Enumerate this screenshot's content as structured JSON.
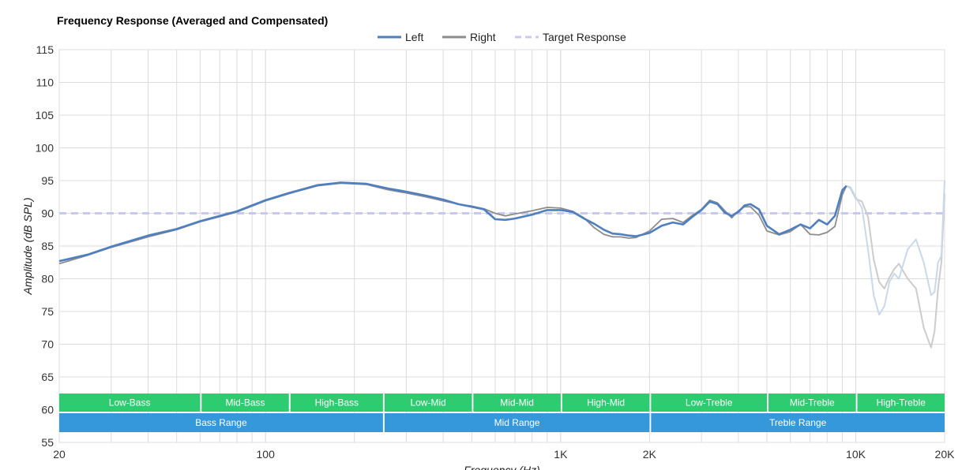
{
  "chart_data": {
    "type": "line",
    "title": "Frequency Response (Averaged and Compensated)",
    "xlabel": "Frequency (Hz)",
    "ylabel": "Amplitude (dB SPL)",
    "x_scale": "log",
    "xlim": [
      20,
      20000
    ],
    "ylim": [
      55,
      115
    ],
    "grid": true,
    "legend_position": "top-center",
    "x_tick_labels": [
      {
        "value": 20,
        "label": "20"
      },
      {
        "value": 100,
        "label": "100"
      },
      {
        "value": 1000,
        "label": "1K"
      },
      {
        "value": 2000,
        "label": "2K"
      },
      {
        "value": 10000,
        "label": "10K"
      },
      {
        "value": 20000,
        "label": "20K"
      }
    ],
    "y_ticks": [
      55,
      60,
      65,
      70,
      75,
      80,
      85,
      90,
      95,
      100,
      105,
      110,
      115
    ],
    "series": [
      {
        "name": "Left",
        "color": "#4f7fbf",
        "style": "solid",
        "faded_from": 9300,
        "faded_color": "#c9d9ea",
        "points": [
          [
            20,
            82.7
          ],
          [
            25,
            83.7
          ],
          [
            30,
            84.9
          ],
          [
            40,
            86.6
          ],
          [
            50,
            87.6
          ],
          [
            60,
            88.8
          ],
          [
            70,
            89.6
          ],
          [
            80,
            90.3
          ],
          [
            90,
            91.2
          ],
          [
            100,
            92.0
          ],
          [
            120,
            93.1
          ],
          [
            150,
            94.3
          ],
          [
            180,
            94.7
          ],
          [
            220,
            94.5
          ],
          [
            260,
            93.8
          ],
          [
            300,
            93.3
          ],
          [
            350,
            92.7
          ],
          [
            400,
            92.1
          ],
          [
            450,
            91.4
          ],
          [
            500,
            91.0
          ],
          [
            550,
            90.6
          ],
          [
            600,
            89.1
          ],
          [
            650,
            89.0
          ],
          [
            700,
            89.2
          ],
          [
            800,
            89.8
          ],
          [
            900,
            90.5
          ],
          [
            1000,
            90.5
          ],
          [
            1100,
            90.2
          ],
          [
            1200,
            89.2
          ],
          [
            1300,
            88.4
          ],
          [
            1400,
            87.5
          ],
          [
            1500,
            86.9
          ],
          [
            1600,
            86.8
          ],
          [
            1700,
            86.6
          ],
          [
            1800,
            86.5
          ],
          [
            2000,
            87.0
          ],
          [
            2200,
            88.1
          ],
          [
            2400,
            88.6
          ],
          [
            2600,
            88.3
          ],
          [
            2800,
            89.5
          ],
          [
            3000,
            90.5
          ],
          [
            3200,
            91.8
          ],
          [
            3400,
            91.4
          ],
          [
            3600,
            90.1
          ],
          [
            3800,
            89.6
          ],
          [
            4000,
            90.2
          ],
          [
            4200,
            91.2
          ],
          [
            4400,
            91.4
          ],
          [
            4700,
            90.6
          ],
          [
            5000,
            88.1
          ],
          [
            5500,
            86.8
          ],
          [
            6000,
            87.5
          ],
          [
            6500,
            88.3
          ],
          [
            7000,
            87.7
          ],
          [
            7500,
            89.0
          ],
          [
            8000,
            88.3
          ],
          [
            8500,
            89.6
          ],
          [
            9000,
            93.5
          ],
          [
            9300,
            94.2
          ],
          [
            9600,
            94.0
          ],
          [
            10000,
            92.5
          ],
          [
            10500,
            90.8
          ],
          [
            11000,
            84.5
          ],
          [
            11500,
            77.5
          ],
          [
            12000,
            74.5
          ],
          [
            12500,
            75.8
          ],
          [
            13000,
            79.5
          ],
          [
            13500,
            80.8
          ],
          [
            14000,
            80.0
          ],
          [
            15000,
            84.5
          ],
          [
            16000,
            86.0
          ],
          [
            17000,
            82.5
          ],
          [
            18000,
            77.5
          ],
          [
            18500,
            78.0
          ],
          [
            19000,
            82.5
          ],
          [
            19500,
            83.5
          ],
          [
            20000,
            95.0
          ]
        ]
      },
      {
        "name": "Right",
        "color": "#8c8c8c",
        "style": "solid",
        "faded_from": 9300,
        "faded_color": "#cccccc",
        "points": [
          [
            20,
            82.3
          ],
          [
            25,
            83.6
          ],
          [
            30,
            84.8
          ],
          [
            40,
            86.4
          ],
          [
            50,
            87.5
          ],
          [
            60,
            88.7
          ],
          [
            70,
            89.5
          ],
          [
            80,
            90.2
          ],
          [
            90,
            91.1
          ],
          [
            100,
            91.9
          ],
          [
            120,
            93.0
          ],
          [
            150,
            94.2
          ],
          [
            180,
            94.6
          ],
          [
            220,
            94.4
          ],
          [
            260,
            93.6
          ],
          [
            300,
            93.1
          ],
          [
            350,
            92.5
          ],
          [
            400,
            91.9
          ],
          [
            450,
            91.4
          ],
          [
            500,
            91.1
          ],
          [
            550,
            90.7
          ],
          [
            600,
            90.0
          ],
          [
            650,
            89.6
          ],
          [
            700,
            89.9
          ],
          [
            800,
            90.4
          ],
          [
            900,
            90.9
          ],
          [
            1000,
            90.8
          ],
          [
            1100,
            90.3
          ],
          [
            1200,
            89.3
          ],
          [
            1300,
            87.8
          ],
          [
            1400,
            86.8
          ],
          [
            1500,
            86.4
          ],
          [
            1600,
            86.4
          ],
          [
            1700,
            86.2
          ],
          [
            1800,
            86.3
          ],
          [
            2000,
            87.3
          ],
          [
            2200,
            89.1
          ],
          [
            2400,
            89.2
          ],
          [
            2600,
            88.6
          ],
          [
            2800,
            89.7
          ],
          [
            3000,
            90.6
          ],
          [
            3200,
            92.0
          ],
          [
            3400,
            91.6
          ],
          [
            3600,
            90.4
          ],
          [
            3800,
            89.3
          ],
          [
            4000,
            90.4
          ],
          [
            4200,
            91.0
          ],
          [
            4400,
            91.0
          ],
          [
            4700,
            89.7
          ],
          [
            5000,
            87.3
          ],
          [
            5500,
            86.7
          ],
          [
            6000,
            87.2
          ],
          [
            6500,
            88.3
          ],
          [
            7000,
            86.8
          ],
          [
            7500,
            86.7
          ],
          [
            8000,
            87.1
          ],
          [
            8500,
            88.0
          ],
          [
            9000,
            92.8
          ],
          [
            9300,
            94.2
          ],
          [
            9600,
            93.8
          ],
          [
            10000,
            92.2
          ],
          [
            10500,
            91.8
          ],
          [
            11000,
            89.5
          ],
          [
            11500,
            83.0
          ],
          [
            12000,
            79.5
          ],
          [
            12500,
            78.5
          ],
          [
            13000,
            80.2
          ],
          [
            13500,
            81.5
          ],
          [
            14000,
            82.3
          ],
          [
            15000,
            80.0
          ],
          [
            16000,
            78.5
          ],
          [
            17000,
            72.5
          ],
          [
            18000,
            69.5
          ],
          [
            18500,
            72.0
          ],
          [
            19000,
            78.5
          ],
          [
            19500,
            82.5
          ],
          [
            20000,
            93.0
          ]
        ]
      },
      {
        "name": "Target Response",
        "color": "#c8c8f4",
        "style": "dashed",
        "points": [
          [
            20,
            90
          ],
          [
            20000,
            90
          ]
        ]
      }
    ],
    "bands": [
      {
        "label": "Low-Bass",
        "row": 1,
        "from": 20,
        "to": 60,
        "color": "#2ecc71"
      },
      {
        "label": "Mid-Bass",
        "row": 1,
        "from": 60,
        "to": 120,
        "color": "#2ecc71"
      },
      {
        "label": "High-Bass",
        "row": 1,
        "from": 120,
        "to": 250,
        "color": "#2ecc71"
      },
      {
        "label": "Low-Mid",
        "row": 1,
        "from": 250,
        "to": 500,
        "color": "#2ecc71"
      },
      {
        "label": "Mid-Mid",
        "row": 1,
        "from": 500,
        "to": 1000,
        "color": "#2ecc71"
      },
      {
        "label": "High-Mid",
        "row": 1,
        "from": 1000,
        "to": 2000,
        "color": "#2ecc71"
      },
      {
        "label": "Low-Treble",
        "row": 1,
        "from": 2000,
        "to": 5000,
        "color": "#2ecc71"
      },
      {
        "label": "Mid-Treble",
        "row": 1,
        "from": 5000,
        "to": 10000,
        "color": "#2ecc71"
      },
      {
        "label": "High-Treble",
        "row": 1,
        "from": 10000,
        "to": 20000,
        "color": "#2ecc71"
      },
      {
        "label": "Bass Range",
        "row": 2,
        "from": 20,
        "to": 250,
        "color": "#3498db"
      },
      {
        "label": "Mid Range",
        "row": 2,
        "from": 250,
        "to": 2000,
        "color": "#3498db"
      },
      {
        "label": "Treble Range",
        "row": 2,
        "from": 2000,
        "to": 20000,
        "color": "#3498db"
      }
    ]
  }
}
